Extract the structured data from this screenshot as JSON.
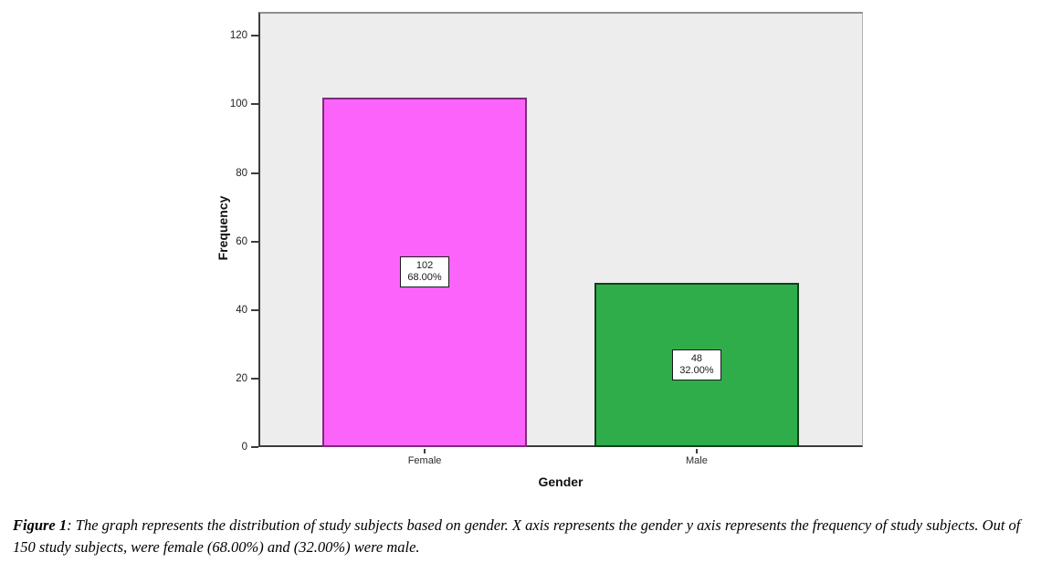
{
  "figure": {
    "caption": {
      "label": "Figure 1",
      "separator": ": ",
      "text": "The graph represents the distribution of study subjects based on gender. X axis represents the gender y axis represents the frequency of study subjects. Out of 150 study subjects, were female (68.00%) and (32.00%) were male."
    }
  },
  "chart_data": {
    "type": "bar",
    "title": "",
    "xlabel": "Gender",
    "ylabel": "Frequency",
    "categories": [
      "Female",
      "Male"
    ],
    "values": [
      102,
      48
    ],
    "percent_labels": [
      "68.00%",
      "32.00%"
    ],
    "y_ticks": [
      0,
      20,
      40,
      60,
      80,
      100,
      120
    ],
    "ylim": [
      0,
      127
    ],
    "grid": false,
    "legend": "none",
    "plot_background": "#ededed",
    "bar_fill_colors": [
      "#fc63fa",
      "#2fad4a"
    ],
    "bar_border_colors": [
      "#7e2a7c",
      "#143f1d"
    ]
  }
}
